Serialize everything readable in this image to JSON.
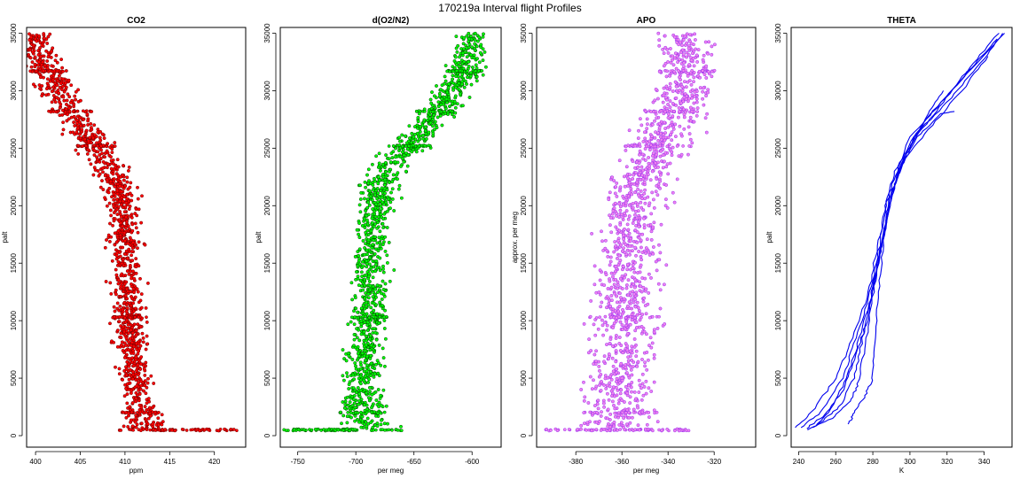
{
  "figure": {
    "title": "170219a   Interval flight Profiles"
  },
  "chart_data": [
    {
      "type": "scatter",
      "title": "CO2",
      "xlabel": "ppm",
      "ylabel": "palt",
      "xlim": [
        399,
        423.5
      ],
      "ylim": [
        -1000,
        35500
      ],
      "xticks": [
        400,
        405,
        410,
        415,
        420
      ],
      "yticks": [
        0,
        5000,
        10000,
        15000,
        20000,
        25000,
        30000,
        35000
      ],
      "fill_color": "#ff0000",
      "edge_color": "#6b0000",
      "profile": {
        "palt": [
          500,
          1000,
          2000,
          3000,
          5000,
          7000,
          10000,
          13000,
          16000,
          19000,
          22000,
          25000,
          28000,
          30000,
          32000,
          35000
        ],
        "mean": [
          412.5,
          412.3,
          411.8,
          411.5,
          411.2,
          410.8,
          410.5,
          410.3,
          410.0,
          409.8,
          409.2,
          407.0,
          404.0,
          402.5,
          401.0,
          399.8
        ],
        "spread": [
          2.0,
          1.6,
          1.4,
          1.3,
          1.3,
          1.2,
          1.2,
          1.2,
          1.2,
          1.2,
          1.3,
          1.5,
          1.6,
          1.5,
          1.4,
          1.2
        ]
      },
      "tail": {
        "palt": 500,
        "x_range": [
          413,
          422.5
        ]
      }
    },
    {
      "type": "scatter",
      "title": "d(O2/N2)",
      "xlabel": "per meg",
      "ylabel": "palt",
      "xlim": [
        -765,
        -575
      ],
      "ylim": [
        -1000,
        35500
      ],
      "xticks": [
        -750,
        -700,
        -650,
        -600
      ],
      "yticks": [
        0,
        5000,
        10000,
        15000,
        20000,
        25000,
        30000,
        35000
      ],
      "fill_color": "#00ff00",
      "edge_color": "#004400",
      "profile": {
        "palt": [
          500,
          1500,
          3000,
          5000,
          8000,
          11000,
          14000,
          17000,
          20000,
          22000,
          23500,
          25000,
          27000,
          29000,
          31000,
          33000,
          35000
        ],
        "mean": [
          -690,
          -693,
          -695,
          -693,
          -690,
          -688,
          -688,
          -685,
          -682,
          -680,
          -670,
          -655,
          -640,
          -625,
          -610,
          -603,
          -598
        ],
        "spread": [
          20,
          14,
          12,
          11,
          11,
          10,
          10,
          10,
          10,
          11,
          13,
          12,
          11,
          11,
          10,
          10,
          9
        ]
      },
      "tail": {
        "palt": 500,
        "x_range": [
          -762,
          -700
        ]
      }
    },
    {
      "type": "scatter",
      "title": "APO",
      "xlabel": "per meg",
      "ylabel": "approx. per meg",
      "xlim": [
        -397,
        -302
      ],
      "ylim": [
        -1000,
        35500
      ],
      "xticks": [
        -380,
        -360,
        -340,
        -320
      ],
      "yticks": [
        0,
        5000,
        10000,
        15000,
        20000,
        25000,
        30000,
        35000
      ],
      "fill_color": "#ee82ee",
      "edge_color": "#9a32f0",
      "profile": {
        "palt": [
          500,
          3000,
          6000,
          10000,
          14000,
          18000,
          22000,
          25000,
          28000,
          31000,
          35000
        ],
        "mean": [
          -362,
          -361,
          -360,
          -359,
          -358,
          -356,
          -352,
          -345,
          -337,
          -332,
          -333
        ],
        "spread": [
          11,
          10,
          10,
          10,
          9,
          9,
          9,
          9,
          9,
          8,
          8
        ]
      },
      "tail": {
        "palt": 500,
        "x_range": [
          -393,
          -330
        ]
      }
    },
    {
      "type": "line",
      "title": "THETA",
      "xlabel": "K",
      "ylabel": "palt",
      "xlim": [
        236,
        355
      ],
      "ylim": [
        -1000,
        35500
      ],
      "xticks": [
        240,
        260,
        280,
        300,
        320,
        340
      ],
      "yticks": [
        0,
        5000,
        10000,
        15000,
        20000,
        25000,
        30000,
        35000
      ],
      "line_color": "#0000ee",
      "series": [
        {
          "palt": [
            700,
            2000,
            5000,
            8000,
            12000,
            16000,
            20000,
            23000,
            26000,
            29000,
            32000,
            35000
          ],
          "values": [
            238,
            247,
            260,
            268,
            277,
            282,
            287,
            292,
            302,
            320,
            336,
            350
          ]
        },
        {
          "palt": [
            700,
            2000,
            5000,
            8000,
            12000,
            16000,
            20000,
            23000,
            26000,
            29000,
            32000,
            34500
          ],
          "values": [
            241,
            252,
            264,
            270,
            278,
            283,
            287,
            293,
            300,
            317,
            333,
            347
          ]
        },
        {
          "palt": [
            500,
            1500,
            3000,
            4500,
            8000,
            12000,
            16000,
            20000,
            24000,
            27000,
            31000,
            35000
          ],
          "values": [
            245,
            258,
            268,
            272,
            276,
            280,
            284,
            289,
            296,
            306,
            328,
            351
          ]
        },
        {
          "palt": [
            900,
            2500,
            5000,
            8000,
            12000,
            16000,
            20000,
            23000,
            26000,
            29000,
            32000,
            35000
          ],
          "values": [
            250,
            262,
            270,
            274,
            279,
            284,
            289,
            294,
            303,
            318,
            332,
            348
          ]
        },
        {
          "palt": [
            1000,
            2000,
            3500,
            5000,
            8000,
            12000,
            16000,
            20000,
            24000,
            28000,
            30000
          ],
          "values": [
            267,
            270,
            276,
            280,
            281,
            283,
            285,
            288,
            296,
            310,
            318
          ]
        },
        {
          "palt": [
            700,
            2000,
            5000,
            8000,
            12000,
            16000,
            20000,
            23000,
            26000,
            28000,
            28200
          ],
          "values": [
            248,
            256,
            266,
            272,
            279,
            284,
            289,
            294,
            304,
            317,
            324
          ]
        },
        {
          "palt": [
            600,
            1800,
            4000,
            7000,
            10000,
            14000,
            18000,
            21000,
            24000,
            27000,
            30000,
            33000
          ],
          "values": [
            244,
            254,
            264,
            271,
            277,
            282,
            286,
            290,
            297,
            312,
            328,
            342
          ]
        }
      ]
    }
  ]
}
